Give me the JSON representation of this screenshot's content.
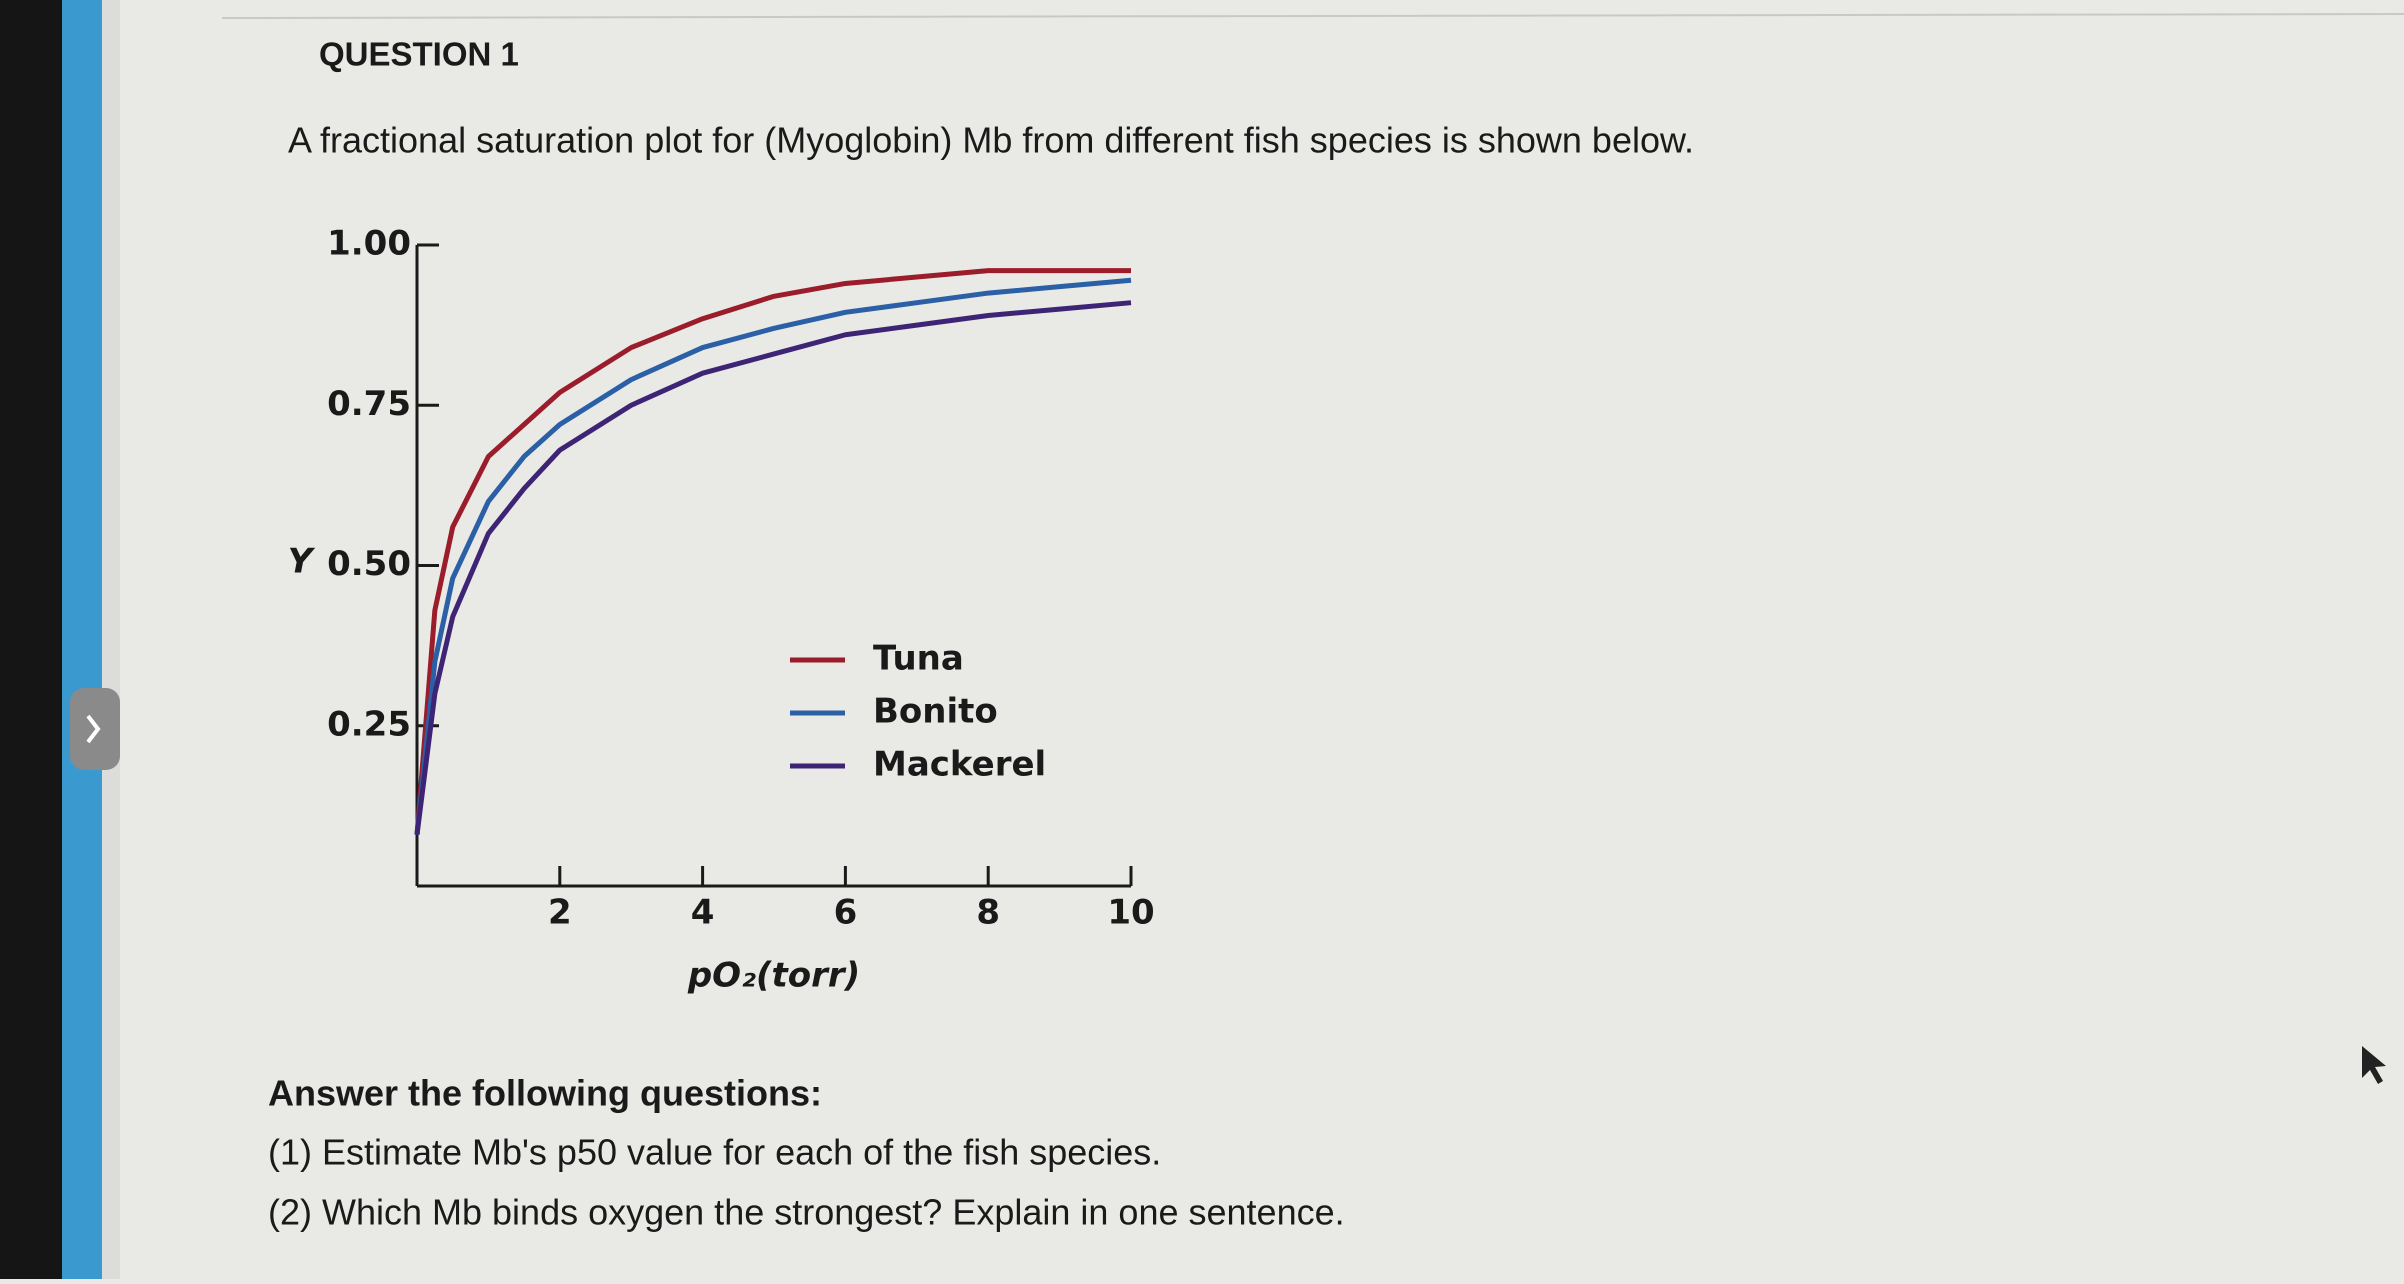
{
  "question": {
    "title": "QUESTION 1",
    "prompt": "A fractional saturation plot for (Myoglobin) Mb from different fish species is shown below.",
    "answer_heading": "Answer the following questions:",
    "items": [
      "(1) Estimate Mb's p50 value for each of the fish species.",
      "(2) Which Mb binds oxygen the strongest? Explain in one sentence."
    ]
  },
  "chart_data": {
    "type": "line",
    "x_label": "pO₂(torr)",
    "y_label": "Y",
    "x": [
      0,
      0.25,
      0.5,
      1,
      1.5,
      2,
      3,
      4,
      5,
      6,
      7,
      8,
      9,
      10
    ],
    "series": [
      {
        "name": "Tuna",
        "color": "#9b1c2a",
        "values": [
          0.08,
          0.43,
          0.56,
          0.67,
          0.72,
          0.77,
          0.84,
          0.885,
          0.92,
          0.94,
          0.95,
          0.96,
          0.96,
          0.96
        ]
      },
      {
        "name": "Bonito",
        "color": "#2b5fa6",
        "values": [
          0.08,
          0.35,
          0.48,
          0.6,
          0.67,
          0.72,
          0.79,
          0.84,
          0.87,
          0.895,
          0.91,
          0.925,
          0.935,
          0.945
        ]
      },
      {
        "name": "Mackerel",
        "color": "#3e2475",
        "values": [
          0.08,
          0.3,
          0.42,
          0.55,
          0.62,
          0.68,
          0.75,
          0.8,
          0.83,
          0.86,
          0.875,
          0.89,
          0.9,
          0.91
        ]
      }
    ],
    "xlim": [
      0,
      10
    ],
    "xticks": [
      2,
      4,
      6,
      8,
      10
    ],
    "ylim": [
      0,
      1
    ],
    "yticks": [
      0.25,
      {
        "value": 0.5,
        "label": "0.50"
      },
      0.75,
      {
        "value": 1,
        "label": "1.00"
      }
    ]
  }
}
